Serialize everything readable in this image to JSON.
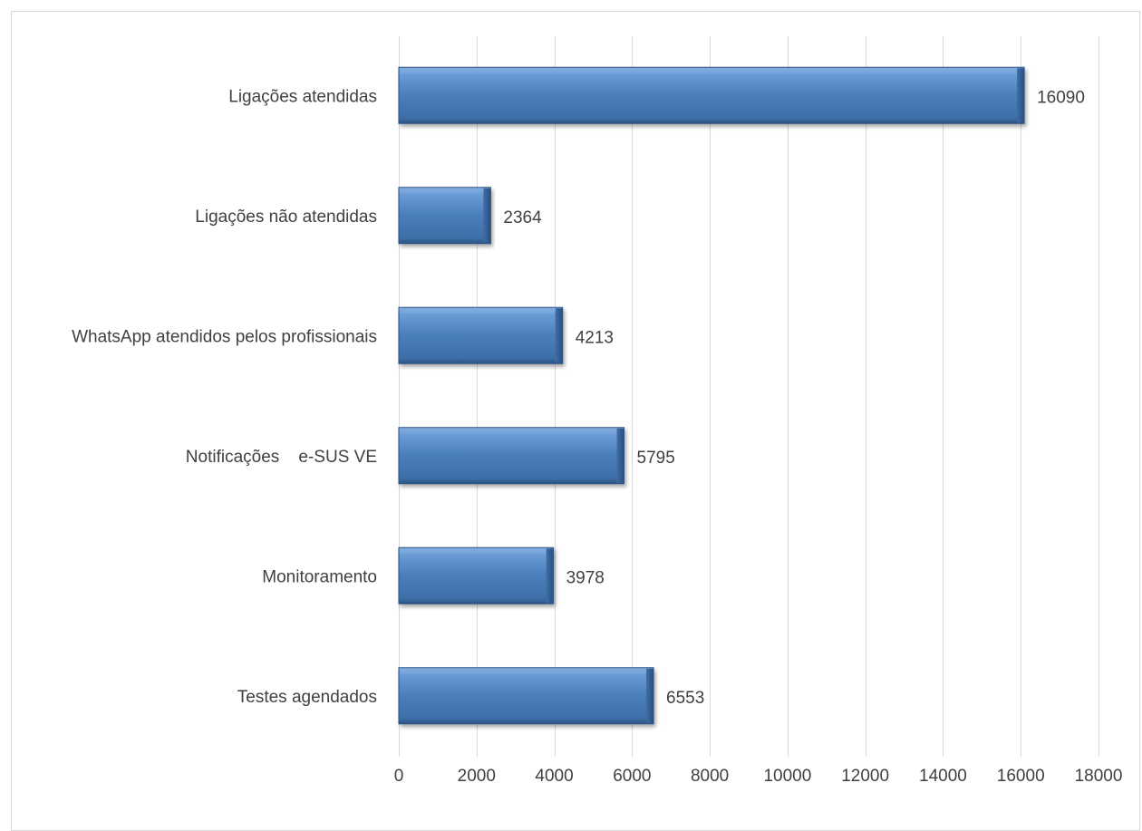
{
  "chart_data": {
    "type": "bar",
    "orientation": "horizontal",
    "title": "",
    "xlabel": "",
    "ylabel": "",
    "categories": [
      "Ligações atendidas",
      "Ligações não atendidas",
      "WhatsApp atendidos pelos profissionais",
      "Notificações    e-SUS VE",
      "Monitoramento",
      "Testes agendados"
    ],
    "values": [
      16090,
      2364,
      4213,
      5795,
      3978,
      6553
    ],
    "xlim": [
      0,
      18000
    ],
    "x_ticks": [
      0,
      2000,
      4000,
      6000,
      8000,
      10000,
      12000,
      14000,
      16000,
      18000
    ],
    "data_labels": true,
    "grid": "vertical",
    "legend": "none",
    "colors": {
      "bar_fill": "#4a7ebb",
      "bar_highlight": "#7aa7dc",
      "bar_shadow": "#2c5384",
      "gridline": "#d9d9d9",
      "text": "#404040",
      "frame": "#d9d9d9"
    }
  }
}
